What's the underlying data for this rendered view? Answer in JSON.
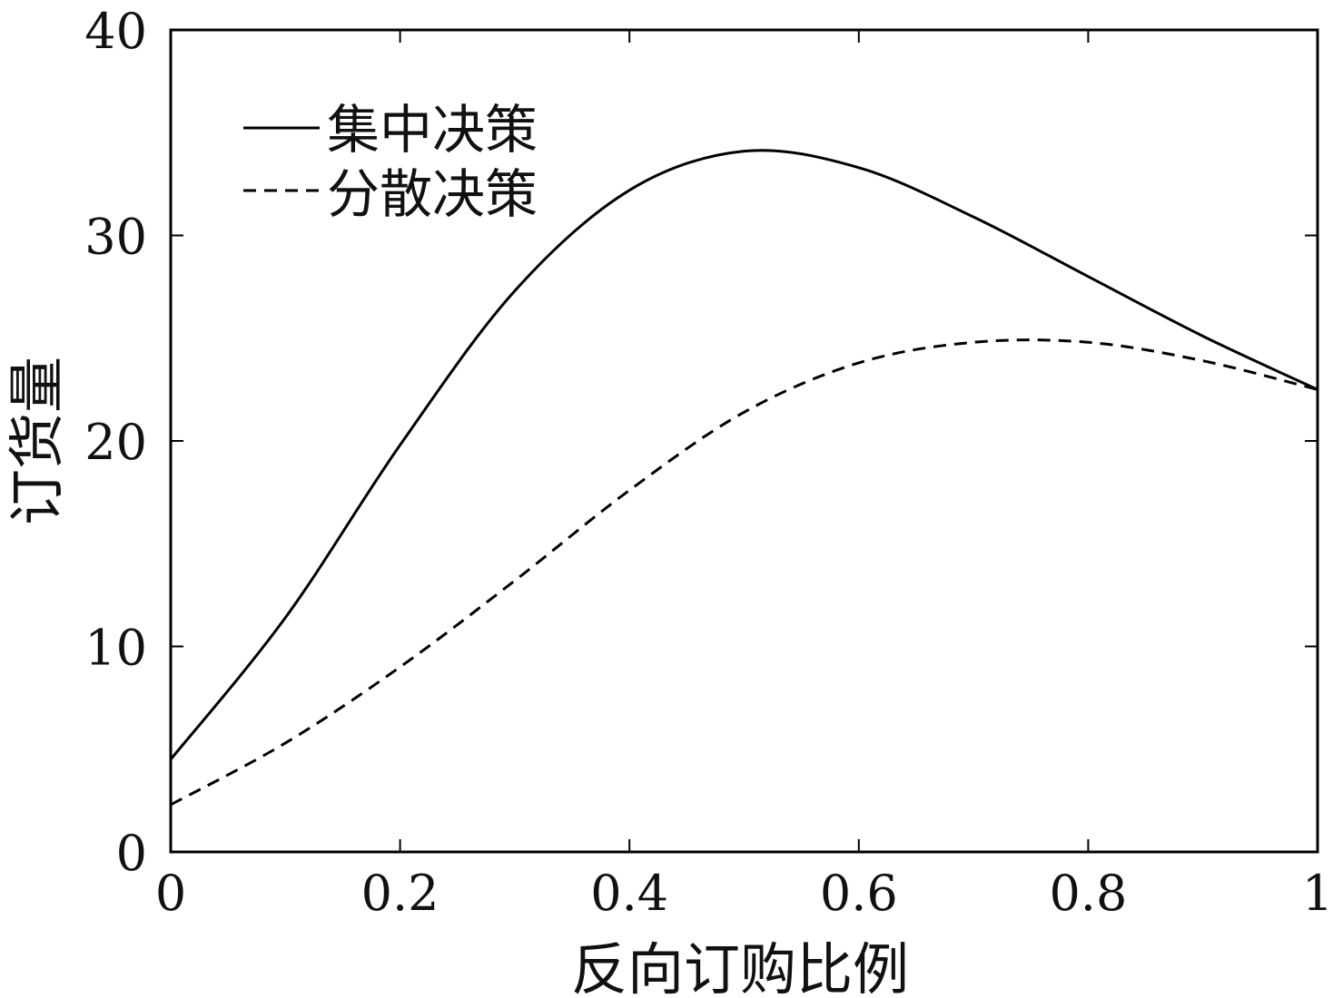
{
  "chart_data": {
    "type": "line",
    "title": "",
    "xlabel": "反向订购比例",
    "ylabel": "订货量",
    "xlim": [
      0,
      1
    ],
    "ylim": [
      0,
      40
    ],
    "xticks": [
      0,
      0.2,
      0.4,
      0.6,
      0.8,
      1
    ],
    "xtick_labels": [
      "0",
      "0.2",
      "0.4",
      "0.6",
      "0.8",
      "1"
    ],
    "yticks": [
      0,
      10,
      20,
      30,
      40
    ],
    "ytick_labels": [
      "0",
      "10",
      "20",
      "30",
      "40"
    ],
    "grid": false,
    "legend_position": "top-left",
    "x": [
      0,
      0.1,
      0.2,
      0.3,
      0.4,
      0.5,
      0.6,
      0.7,
      0.8,
      0.9,
      1.0
    ],
    "series": [
      {
        "name": "集中决策",
        "style": "solid",
        "color": "#000000",
        "values": [
          4.5,
          11.4,
          19.8,
          27.3,
          32.2,
          34.1,
          33.3,
          30.9,
          28.0,
          25.1,
          22.5
        ]
      },
      {
        "name": "分散决策",
        "style": "dashed",
        "color": "#000000",
        "values": [
          2.3,
          5.3,
          9.0,
          13.2,
          17.6,
          21.4,
          23.8,
          24.8,
          24.8,
          23.9,
          22.5
        ]
      }
    ]
  }
}
